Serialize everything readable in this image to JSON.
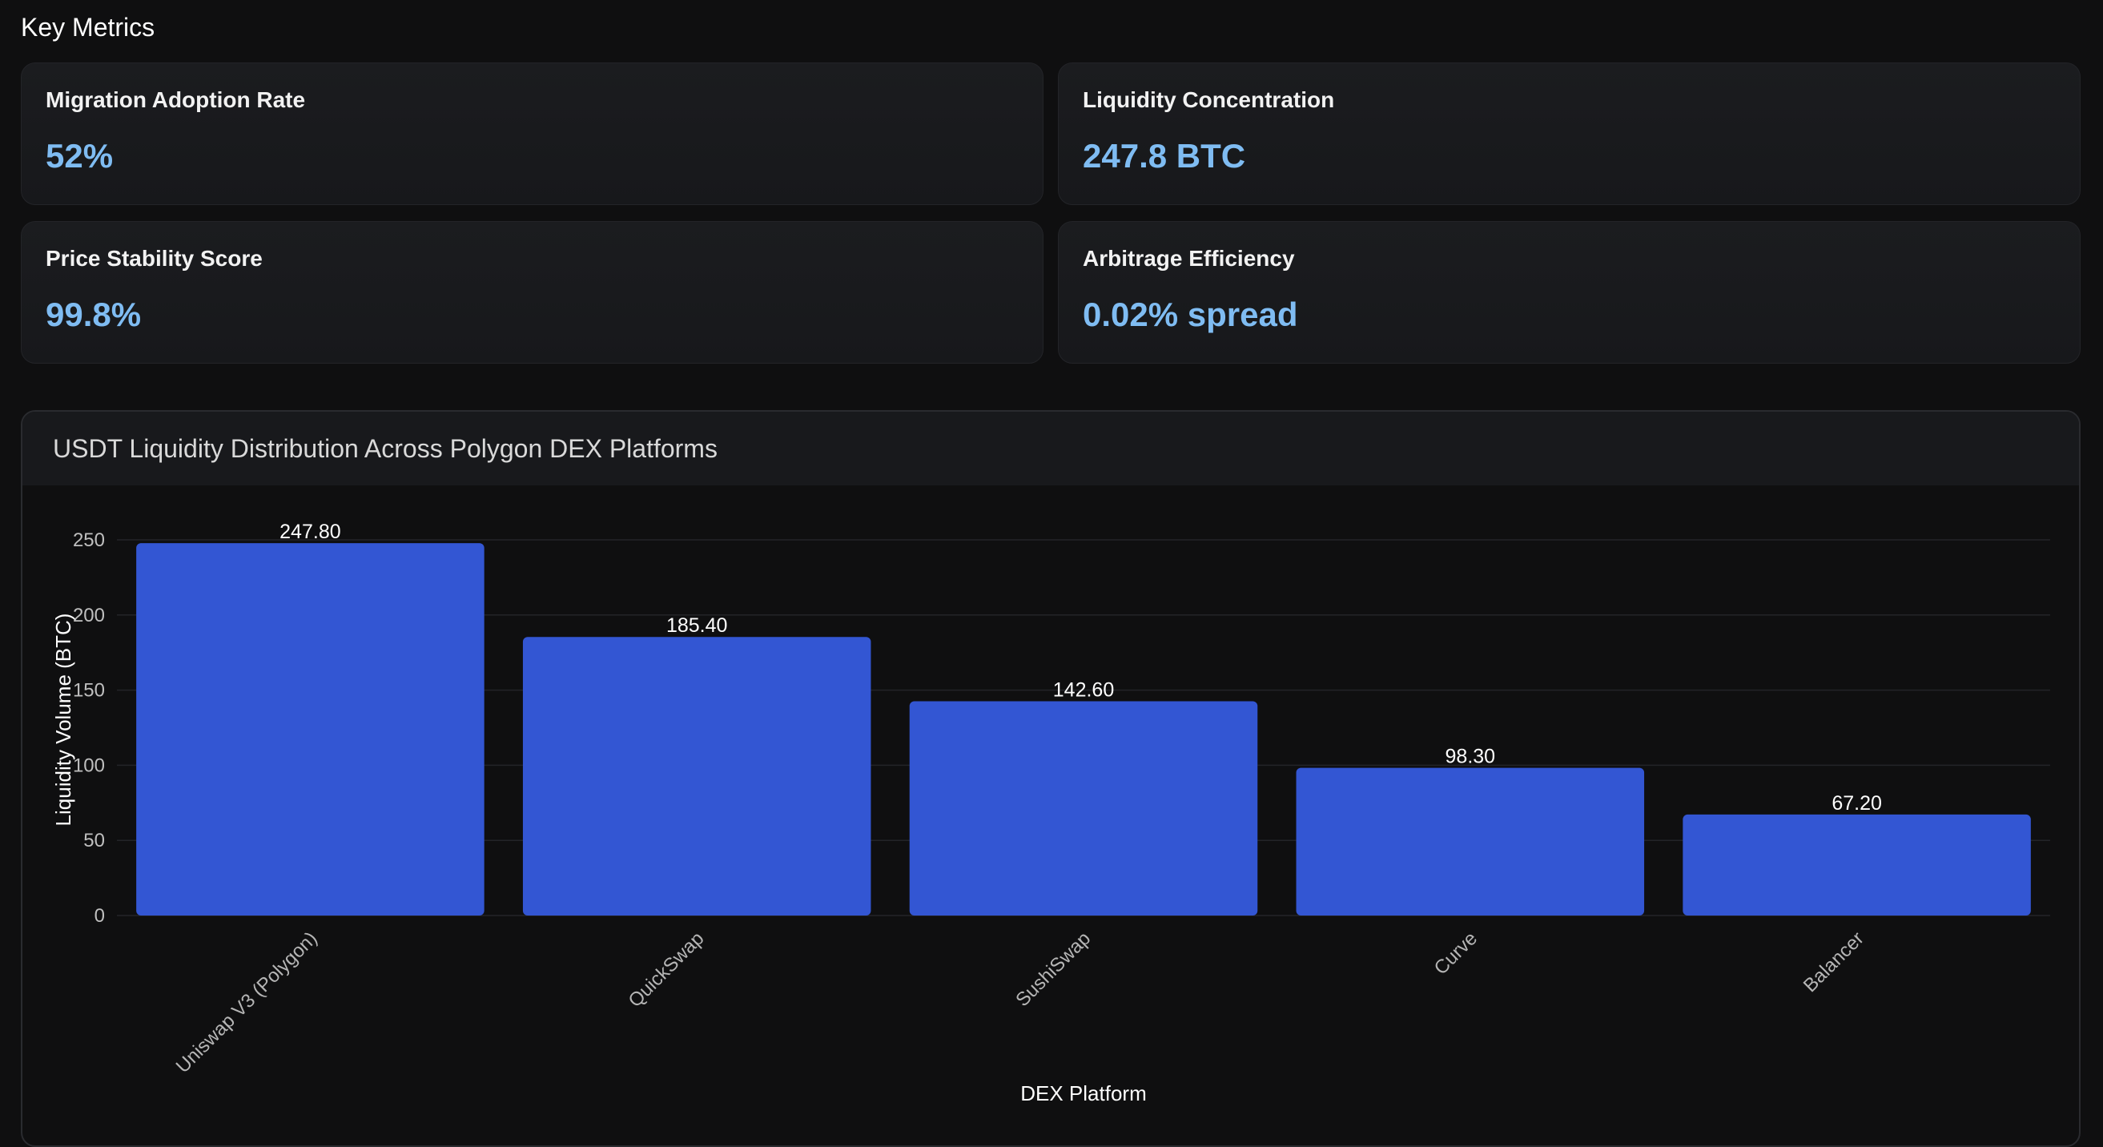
{
  "metrics_section": {
    "title": "Key Metrics",
    "cards": [
      {
        "label": "Migration Adoption Rate",
        "value": "52%"
      },
      {
        "label": "Liquidity Concentration",
        "value": "247.8 BTC"
      },
      {
        "label": "Price Stability Score",
        "value": "99.8%"
      },
      {
        "label": "Arbitrage Efficiency",
        "value": "0.02% spread"
      }
    ]
  },
  "colors": {
    "accent_value": "#7fbcf2",
    "bar": "#3356d3",
    "grid": "#232428"
  },
  "chart_data": {
    "type": "bar",
    "title": "USDT Liquidity Distribution Across Polygon DEX Platforms",
    "xlabel": "DEX Platform",
    "ylabel": "Liquidity Volume (BTC)",
    "categories": [
      "Uniswap V3 (Polygon)",
      "QuickSwap",
      "SushiSwap",
      "Curve",
      "Balancer"
    ],
    "values": [
      247.8,
      185.4,
      142.6,
      98.3,
      67.2
    ],
    "value_labels": [
      "247.80",
      "185.40",
      "142.60",
      "98.30",
      "67.20"
    ],
    "ylim": [
      0,
      250
    ],
    "yticks": [
      0,
      50,
      100,
      150,
      200,
      250
    ],
    "grid": true,
    "legend": "none"
  }
}
